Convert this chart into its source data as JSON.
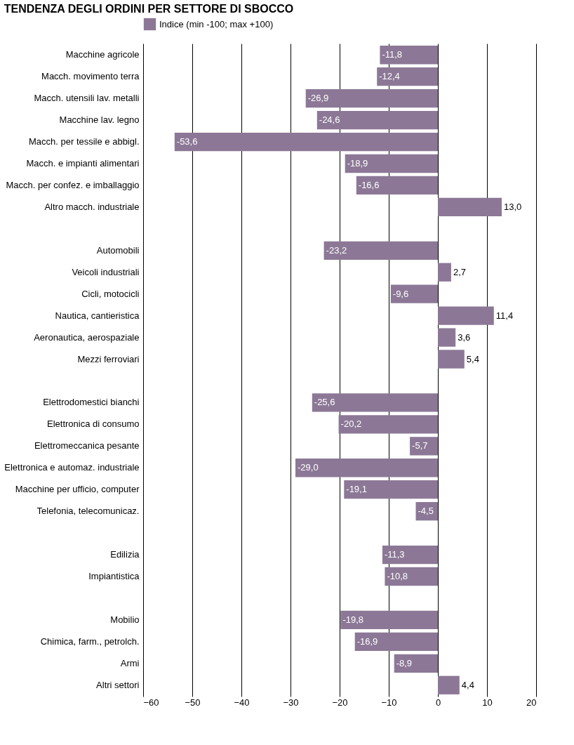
{
  "chart_data": {
    "type": "bar",
    "orientation": "horizontal",
    "title": "TENDENZA DEGLI ORDINI PER SETTORE DI SBOCCO",
    "categories": [
      "Macchine agricole",
      "Macch. movimento terra",
      "Macch. utensili lav. metalli",
      "Macchine lav. legno",
      "Macch. per tessile e abbigl.",
      "Macch. e impianti alimentari",
      "Macch. per confez. e imballaggio",
      "Altro macch. industriale",
      null,
      "Automobili",
      "Veicoli industriali",
      "Cicli, motocicli",
      "Nautica, cantieristica",
      "Aeronautica, aerospaziale",
      "Mezzi ferroviari",
      null,
      "Elettrodomestici bianchi",
      "Elettronica di consumo",
      "Elettromeccanica pesante",
      "Elettronica e automaz. industriale",
      "Macchine per ufficio, computer",
      "Telefonia, telecomunicaz.",
      null,
      "Edilizia",
      "Impiantistica",
      null,
      "Mobilio",
      "Chimica, farm., petrolch.",
      "Armi",
      "Altri settori"
    ],
    "series": [
      {
        "name": "Indice (min -100; max +100)",
        "color": "#8c7896",
        "values": [
          -11.8,
          -12.4,
          -26.9,
          -24.6,
          -53.6,
          -18.9,
          -16.6,
          13.0,
          null,
          -23.2,
          2.7,
          -9.6,
          11.4,
          3.6,
          5.4,
          null,
          -25.6,
          -20.2,
          -5.7,
          -29.0,
          -19.1,
          -4.5,
          null,
          -11.3,
          -10.8,
          null,
          -19.8,
          -16.9,
          -8.9,
          4.4
        ]
      }
    ],
    "value_labels": [
      "-11,8",
      "-12,4",
      "-26,9",
      "-24,6",
      "-53,6",
      "-18,9",
      "-16,6",
      "13,0",
      null,
      "-23,2",
      "2,7",
      "-9,6",
      "11,4",
      "3,6",
      "5,4",
      null,
      "-25,6",
      "-20,2",
      "-5,7",
      "-29,0",
      "-19,1",
      "-4,5",
      null,
      "-11,3",
      "-10,8",
      null,
      "-19,8",
      "-16,9",
      "-8,9",
      "4,4"
    ],
    "xlim": [
      -60,
      20
    ],
    "xticks": [
      -60,
      -50,
      -40,
      -30,
      -20,
      -10,
      0,
      10,
      20
    ],
    "grid": "x",
    "legend": "top"
  }
}
